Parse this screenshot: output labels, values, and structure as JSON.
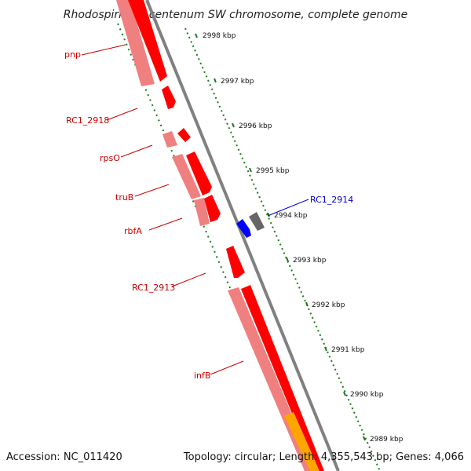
{
  "title": "Rhodospirillum centenum SW chromosome, complete genome",
  "accession": "Accession: NC_011420",
  "topology": "Topology: circular; Length: 4,355,543 bp; Genes: 4,066",
  "scale_labels": [
    "2998 kbp",
    "2997 kbp",
    "2996 kbp",
    "2995 kbp",
    "2994 kbp",
    "2993 kbp",
    "2992 kbp",
    "2991 kbp",
    "2990 kbp",
    "2989 kbp"
  ],
  "genes": [
    {
      "name": "pnp",
      "color": "#cc0000"
    },
    {
      "name": "RC1_2918",
      "color": "#cc0000"
    },
    {
      "name": "rpsO",
      "color": "#cc0000"
    },
    {
      "name": "truB",
      "color": "#cc0000"
    },
    {
      "name": "rbfA",
      "color": "#cc0000"
    },
    {
      "name": "RC1_2913",
      "color": "#cc0000"
    },
    {
      "name": "infB",
      "color": "#cc0000"
    },
    {
      "name": "RC1_2914",
      "color": "#0000cc"
    }
  ],
  "colors": {
    "cds": "#ff0000",
    "cds_light": "#f08080",
    "backbone": "#808080",
    "ruler": "#1a7a1a",
    "reverse_gene": "#0000ff",
    "reverse_gene_gray": "#666666",
    "other_feature": "#ffa500"
  }
}
